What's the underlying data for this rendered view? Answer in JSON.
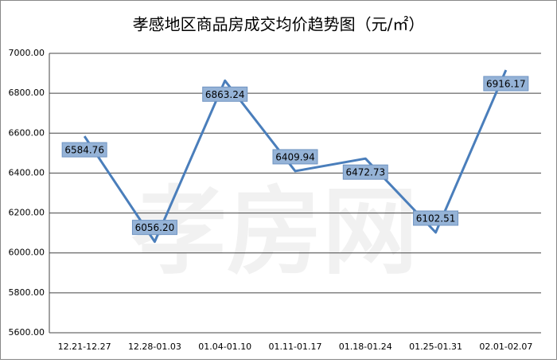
{
  "chart_data": {
    "type": "line",
    "title": "孝感地区商品房成交均价趋势图（元/㎡）",
    "watermark": "孝房网",
    "categories": [
      "12.21-12.27",
      "12.28-01.03",
      "01.04-01.10",
      "01.11-01.17",
      "01.18-01.24",
      "01.25-01.31",
      "02.01-02.07"
    ],
    "values": [
      6584.76,
      6056.2,
      6863.24,
      6409.94,
      6472.73,
      6102.51,
      6916.17
    ],
    "value_labels": [
      "6584.76",
      "6056.20",
      "6863.24",
      "6409.94",
      "6472.73",
      "6102.51",
      "6916.17"
    ],
    "color": "#4a7ebb",
    "ylim": [
      5600,
      7000
    ],
    "yticks": [
      {
        "value": 5600,
        "label": "5600.00"
      },
      {
        "value": 5800,
        "label": "5800.00"
      },
      {
        "value": 6000,
        "label": "6000.00"
      },
      {
        "value": 6200,
        "label": "6200.00"
      },
      {
        "value": 6400,
        "label": "6400.00"
      },
      {
        "value": 6600,
        "label": "6600.00"
      },
      {
        "value": 6800,
        "label": "6800.00"
      },
      {
        "value": 7000,
        "label": "7000.00"
      }
    ],
    "grid": true
  }
}
